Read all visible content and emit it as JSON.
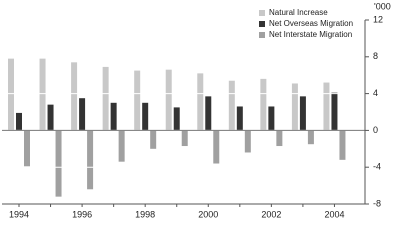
{
  "chart_data": {
    "type": "bar",
    "y_unit": "'000",
    "categories": [
      "1994",
      null,
      "1996",
      null,
      "1998",
      null,
      "2000",
      null,
      "2002",
      null,
      "2004"
    ],
    "series": [
      {
        "name": "Natural Increase",
        "color": "#c8c8c8",
        "values": [
          7.8,
          7.8,
          7.4,
          6.9,
          6.5,
          6.6,
          6.2,
          5.4,
          5.6,
          5.1,
          5.2
        ]
      },
      {
        "name": "Net Overseas Migration",
        "color": "#333333",
        "values": [
          1.9,
          2.8,
          3.5,
          3.0,
          3.0,
          2.5,
          3.7,
          2.6,
          2.6,
          3.7,
          4.1
        ]
      },
      {
        "name": "Net Interstate Migration",
        "color": "#a0a0a0",
        "values": [
          -3.9,
          -7.2,
          -6.4,
          -3.4,
          -2.0,
          -1.7,
          -3.6,
          -2.4,
          -1.7,
          -1.5,
          -3.2
        ]
      }
    ],
    "ylim": [
      -8,
      12
    ],
    "yticks": [
      -8,
      -4,
      0,
      4,
      8,
      12
    ],
    "grid": true,
    "legend": "top-right"
  }
}
